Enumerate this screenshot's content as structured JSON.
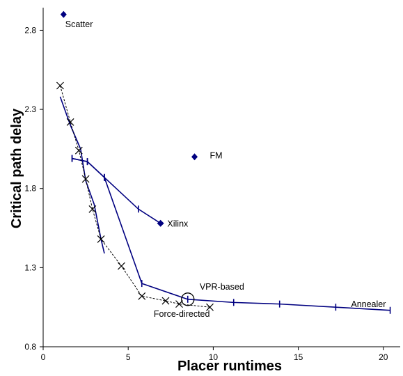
{
  "chart_data": {
    "type": "scatter",
    "title": "",
    "xlabel": "Placer runtimes",
    "ylabel": "Critical path delay",
    "xlim": [
      0,
      21
    ],
    "ylim": [
      0.8,
      3.0
    ],
    "x_ticks": [
      0,
      5,
      10,
      15,
      20
    ],
    "x_tick_labels": [
      "0",
      "5",
      "10",
      "15",
      "20"
    ],
    "y_ticks": [
      0.8,
      1.3,
      1.8,
      2.3,
      2.8
    ],
    "y_tick_labels": [
      "0.8",
      "1.3",
      "1.8",
      "2.3",
      "2.8"
    ],
    "grid": false,
    "legend": "none",
    "colors": {
      "main": "#000080",
      "dashed": "#000000"
    },
    "series": [
      {
        "name": "Annealer",
        "style": "solid-line-bar-markers",
        "x": [
          1.7,
          2.6,
          3.6,
          5.8,
          8.5,
          11.2,
          13.9,
          17.2,
          20.4
        ],
        "y": [
          1.99,
          1.97,
          1.87,
          1.2,
          1.1,
          1.08,
          1.07,
          1.05,
          1.03
        ]
      },
      {
        "name": "Xilinx",
        "style": "solid-line-bar-markers-diamond-end",
        "x": [
          1.7,
          2.6,
          3.6,
          5.6,
          6.9
        ],
        "y": [
          1.99,
          1.97,
          1.87,
          1.67,
          1.58
        ]
      },
      {
        "name": "",
        "style": "solid-line-no-markers",
        "x": [
          1.0,
          1.6,
          2.2,
          2.5,
          3.0,
          3.4,
          3.6
        ],
        "y": [
          2.38,
          2.2,
          2.05,
          1.85,
          1.7,
          1.48,
          1.39
        ]
      },
      {
        "name": "Force-directed",
        "style": "dashed-line-x-markers",
        "x": [
          1.0,
          1.6,
          2.1,
          2.5,
          2.9,
          3.4,
          4.6,
          5.8,
          7.2,
          8.0,
          9.8
        ],
        "y": [
          2.45,
          2.22,
          2.04,
          1.86,
          1.67,
          1.48,
          1.31,
          1.12,
          1.09,
          1.07,
          1.05
        ]
      },
      {
        "name": "Scatter",
        "style": "diamond",
        "x": [
          1.2
        ],
        "y": [
          2.9
        ]
      },
      {
        "name": "FM",
        "style": "diamond",
        "x": [
          8.9
        ],
        "y": [
          2.0
        ]
      },
      {
        "name": "VPR-based",
        "style": "circle",
        "x": [
          8.5
        ],
        "y": [
          1.1
        ]
      }
    ],
    "annotations": [
      {
        "text": "Scatter",
        "x": 1.3,
        "y": 2.82
      },
      {
        "text": "FM",
        "x": 9.8,
        "y": 1.99
      },
      {
        "text": "Xilinx",
        "x": 7.3,
        "y": 1.56
      },
      {
        "text": "VPR-based",
        "x": 9.2,
        "y": 1.16
      },
      {
        "text": "Annealer",
        "x": 18.1,
        "y": 1.05
      },
      {
        "text": "Force-directed",
        "x": 6.5,
        "y": 0.99
      }
    ]
  }
}
